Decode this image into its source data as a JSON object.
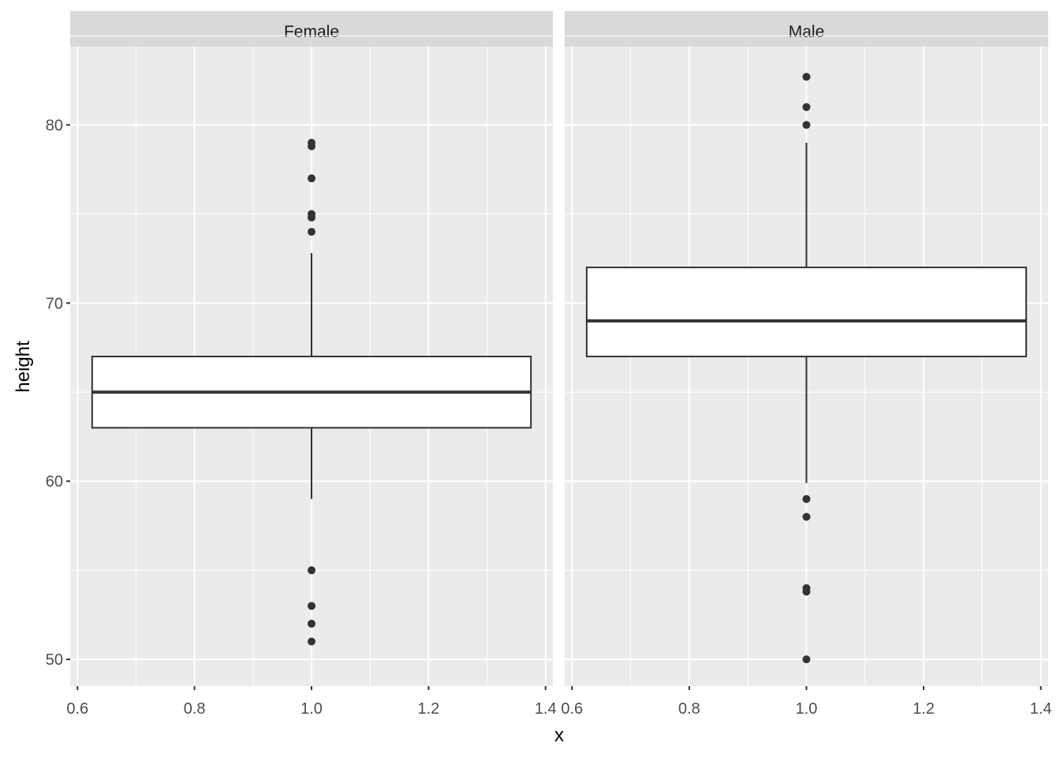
{
  "chart_data": {
    "type": "boxplot",
    "title": "",
    "xlabel": "x",
    "ylabel": "height",
    "xlim": [
      0.5875,
      1.4125
    ],
    "ylim": [
      48.5,
      84.4
    ],
    "x_ticks": [
      "0.6",
      "0.8",
      "1.0",
      "1.2",
      "1.4"
    ],
    "x_tick_values": [
      0.6,
      0.8,
      1.0,
      1.2,
      1.4
    ],
    "y_ticks": [
      "50",
      "60",
      "70",
      "80"
    ],
    "y_tick_values": [
      50,
      60,
      70,
      80
    ],
    "grid": true,
    "colors": {
      "panel": "#ebebeb",
      "strip": "#d9d9d9",
      "grid": "#ffffff",
      "box": "#333333",
      "fill": "#ffffff"
    },
    "panels": [
      {
        "name": "Female",
        "x": 1.0,
        "q1": 63,
        "median": 65,
        "q3": 67,
        "whisker_low": 59,
        "whisker_high": 72.8,
        "outliers": [
          79,
          78.8,
          77,
          75,
          74.8,
          74,
          55,
          53,
          52,
          51
        ]
      },
      {
        "name": "Male",
        "x": 1.0,
        "q1": 67,
        "median": 69,
        "q3": 72,
        "whisker_low": 59.9,
        "whisker_high": 79,
        "outliers": [
          82.7,
          81,
          80,
          59,
          58,
          54,
          53.8,
          50
        ]
      }
    ]
  }
}
